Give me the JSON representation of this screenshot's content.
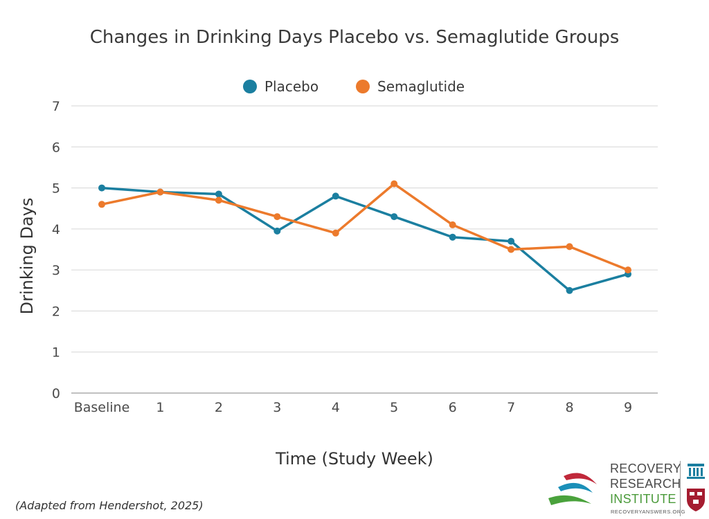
{
  "chart_data": {
    "type": "line",
    "title": "Changes in Drinking Days Placebo vs. Semaglutide Groups",
    "xlabel": "Time (Study Week)",
    "ylabel": "Drinking Days",
    "categories": [
      "Baseline",
      "1",
      "2",
      "3",
      "4",
      "5",
      "6",
      "7",
      "8",
      "9"
    ],
    "ylim": [
      0,
      7
    ],
    "yticks": [
      "0",
      "1",
      "2",
      "3",
      "4",
      "5",
      "6",
      "7"
    ],
    "grid": true,
    "legend_position": "top",
    "series": [
      {
        "name": "Placebo",
        "color": "#1b7fa0",
        "values": [
          5.0,
          4.9,
          4.85,
          3.95,
          4.8,
          4.3,
          3.8,
          3.7,
          2.5,
          2.9
        ]
      },
      {
        "name": "Semaglutide",
        "color": "#ec7a2c",
        "values": [
          4.6,
          4.9,
          4.7,
          4.3,
          3.9,
          5.1,
          4.1,
          3.5,
          3.57,
          3.0
        ]
      }
    ]
  },
  "footer": {
    "citation": "(Adapted from Hendershot, 2025)"
  },
  "logo": {
    "line1": "RECOVERY",
    "line2": "RESEARCH",
    "line3": "INSTITUTE",
    "url": "RECOVERYANSWERS.ORG"
  }
}
